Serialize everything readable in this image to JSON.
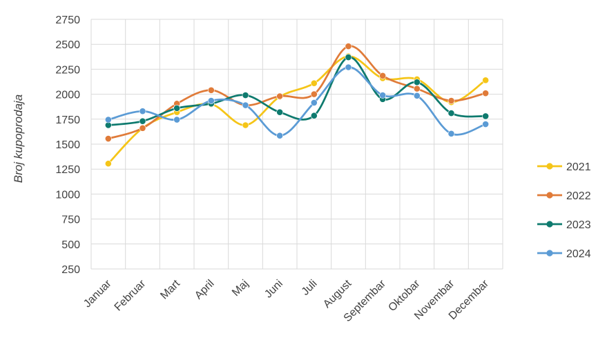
{
  "chart_data": {
    "type": "line",
    "title": "",
    "xlabel": "",
    "ylabel": "Broj kupoprodaja",
    "categories": [
      "Januar",
      "Februar",
      "Mart",
      "April",
      "Maj",
      "Juni",
      "Juli",
      "August",
      "Septembar",
      "Oktobar",
      "Novembar",
      "Decembar"
    ],
    "ylim": [
      250,
      2750
    ],
    "yticks": [
      "250",
      "500",
      "750",
      "1000",
      "1250",
      "1500",
      "1750",
      "2000",
      "2250",
      "2500",
      "2750"
    ],
    "grid": true,
    "smooth": true,
    "legend_position": "right",
    "series": [
      {
        "name": "2021",
        "color": "#F5C518",
        "values": [
          1305,
          1660,
          1820,
          1900,
          1690,
          1975,
          2110,
          2380,
          2160,
          2150,
          1920,
          2140
        ]
      },
      {
        "name": "2022",
        "color": "#E07B39",
        "values": [
          1555,
          1660,
          1905,
          2040,
          1890,
          1980,
          2000,
          2480,
          2185,
          2055,
          1935,
          2010
        ]
      },
      {
        "name": "2023",
        "color": "#0E7A6E",
        "values": [
          1690,
          1730,
          1860,
          1905,
          1990,
          1820,
          1785,
          2370,
          1950,
          2120,
          1810,
          1780
        ]
      },
      {
        "name": "2024",
        "color": "#5B9BD5",
        "values": [
          1745,
          1830,
          1745,
          1935,
          1890,
          1585,
          1915,
          2270,
          1990,
          1985,
          1605,
          1700
        ]
      }
    ]
  }
}
